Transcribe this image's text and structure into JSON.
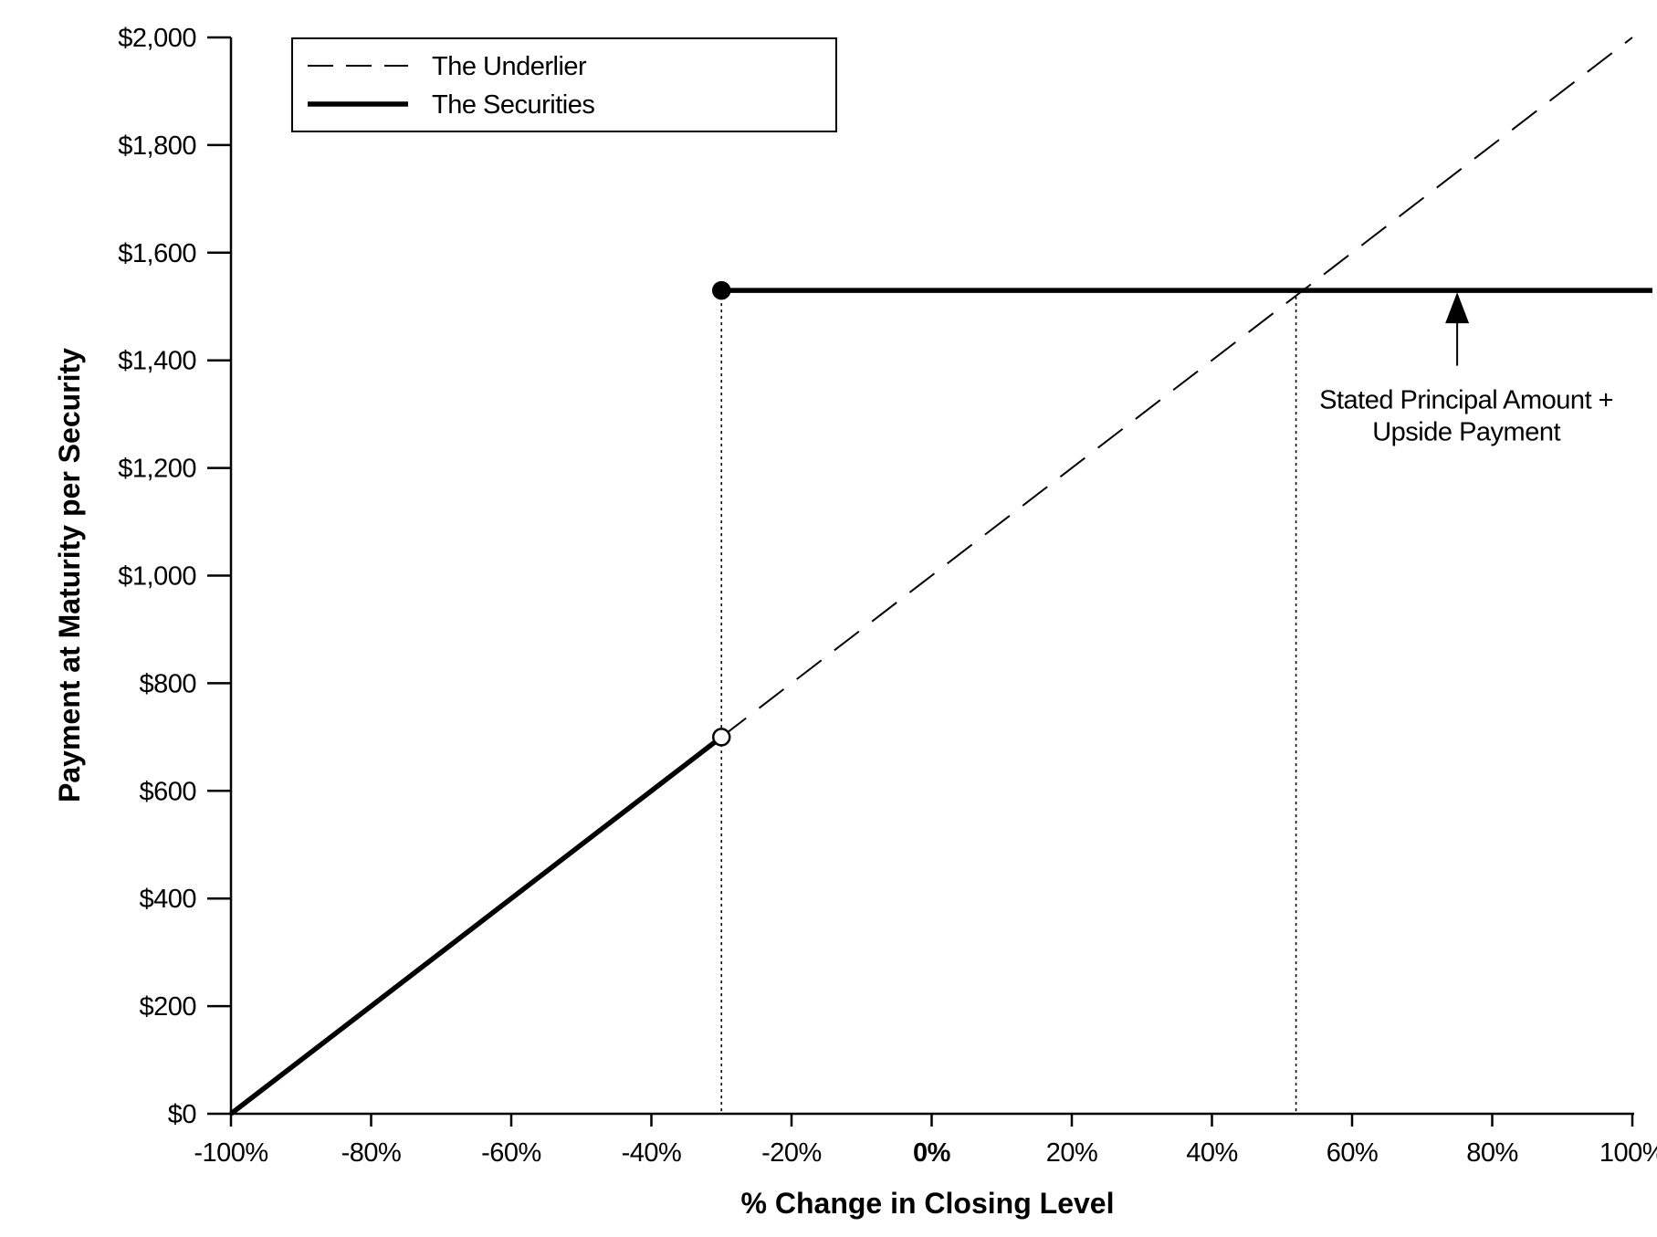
{
  "chart_data": {
    "type": "line",
    "xlabel": "% Change in Closing Level",
    "ylabel": "Payment at Maturity per Security",
    "xlim": [
      -100,
      100
    ],
    "ylim": [
      0,
      2000
    ],
    "x_ticks": [
      -100,
      -80,
      -60,
      -40,
      -20,
      0,
      20,
      40,
      60,
      80,
      100
    ],
    "x_tick_labels": [
      "-100%",
      "-80%",
      "-60%",
      "-40%",
      "-20%",
      "0%",
      "20%",
      "40%",
      "60%",
      "80%",
      "100%"
    ],
    "y_ticks": [
      0,
      200,
      400,
      600,
      800,
      1000,
      1200,
      1400,
      1600,
      1800,
      2000
    ],
    "y_tick_labels": [
      "$0",
      "$200",
      "$400",
      "$600",
      "$800",
      "$1,000",
      "$1,200",
      "$1,400",
      "$1,600",
      "$1,800",
      "$2,000"
    ],
    "legend_position": "top-left",
    "series": [
      {
        "name": "The Underlier",
        "style": "dashed",
        "points": [
          [
            -30,
            700
          ],
          [
            100,
            2000
          ]
        ]
      },
      {
        "name": "The Securities",
        "style": "solid-thick",
        "segments": [
          [
            [
              -100,
              0
            ],
            [
              -30,
              700
            ]
          ],
          [
            [
              -30,
              1530
            ],
            [
              103,
              1530
            ]
          ]
        ]
      }
    ],
    "markers": [
      {
        "x": -30,
        "y": 1530,
        "fill": "filled"
      },
      {
        "x": -30,
        "y": 700,
        "fill": "open"
      }
    ],
    "reference_lines": [
      {
        "x": -30,
        "y_top": 1530,
        "style": "dotted"
      },
      {
        "x": 52,
        "y_top": 1530,
        "style": "dotted"
      }
    ],
    "annotation": {
      "lines": [
        "Stated Principal Amount +",
        "Upside Payment"
      ],
      "arrow_x": 75,
      "arrow_y_from": 1390,
      "arrow_y_to": 1530
    }
  }
}
